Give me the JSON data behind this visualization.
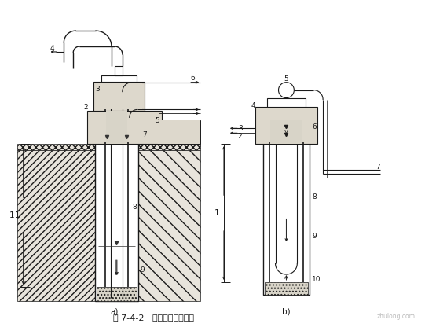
{
  "title": "图 7-4-2   吸泥机清孔示意图",
  "label_a": "a)",
  "label_b": "b)",
  "bg_color": "#ffffff",
  "lc": "#1a1a1a",
  "soil_fc": "#e8e4dc",
  "concrete_fc": "#ddd8cc",
  "gravel_fc": "#d8d4c8"
}
